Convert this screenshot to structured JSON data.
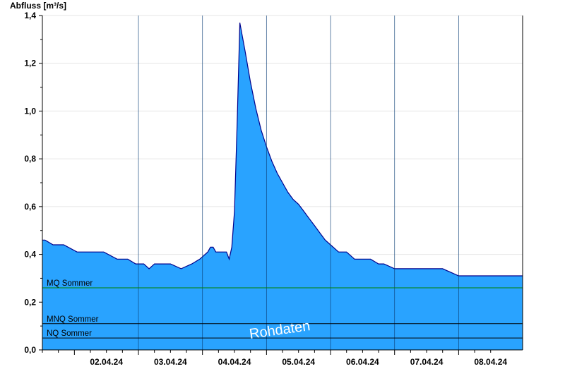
{
  "chart_data": {
    "type": "area",
    "ylabel": "Abfluss [m³/s]",
    "ylim": [
      0,
      1.4
    ],
    "y_ticks": [
      "0,0",
      "0,2",
      "0,4",
      "0,6",
      "0,8",
      "1,0",
      "1,2",
      "1,4"
    ],
    "x_ticks": [
      "02.04.24",
      "03.04.24",
      "04.04.24",
      "05.04.24",
      "06.04.24",
      "07.04.24",
      "08.04.24"
    ],
    "grid": true,
    "fill_color": "#29A3FF",
    "line_color": "#00008B",
    "watermark": "Rohdaten",
    "reference_lines": [
      {
        "label": "MQ Sommer",
        "value": 0.26,
        "color": "#008000"
      },
      {
        "label": "MNQ Sommer",
        "value": 0.11,
        "color": "#000000"
      },
      {
        "label": "NQ Sommer",
        "value": 0.05,
        "color": "#000000"
      }
    ],
    "series": [
      {
        "x": [
          "01.04.24 12:00",
          "01.04.24 13:00",
          "01.04.24 16:00",
          "01.04.24 20:00",
          "02.04.24 01:00",
          "02.04.24 06:00",
          "02.04.24 11:00",
          "02.04.24 16:00",
          "02.04.24 17:00",
          "02.04.24 20:00",
          "02.04.24 23:00",
          "03.04.24 02:00",
          "03.04.24 04:00",
          "03.04.24 06:00",
          "03.04.24 08:00",
          "03.04.24 12:00",
          "03.04.24 16:00",
          "03.04.24 20:00",
          "03.04.24 23:00",
          "04.04.24 02:00",
          "04.04.24 03:00",
          "04.04.24 04:00",
          "04.04.24 05:00",
          "04.04.24 06:00",
          "04.04.24 07:00",
          "04.04.24 08:00",
          "04.04.24 09:00",
          "04.04.24 10:00",
          "04.04.24 11:00",
          "04.04.24 12:00",
          "04.04.24 13:00",
          "04.04.24 14:00",
          "04.04.24 16:00",
          "04.04.24 18:00",
          "04.04.24 20:00",
          "04.04.24 22:00",
          "05.04.24 00:00",
          "05.04.24 02:00",
          "05.04.24 04:00",
          "05.04.24 06:00",
          "05.04.24 08:00",
          "05.04.24 10:00",
          "05.04.24 12:00",
          "05.04.24 14:00",
          "05.04.24 16:00",
          "05.04.24 18:00",
          "05.04.24 20:00",
          "05.04.24 22:00",
          "06.04.24 00:00",
          "06.04.24 03:00",
          "06.04.24 06:00",
          "06.04.24 09:00",
          "06.04.24 12:00",
          "06.04.24 15:00",
          "06.04.24 18:00",
          "06.04.24 20:00",
          "07.04.24 00:00",
          "07.04.24 06:00",
          "07.04.24 12:00",
          "07.04.24 18:00",
          "08.04.24 00:00",
          "08.04.24 06:00",
          "08.04.24 12:00",
          "08.04.24 18:00",
          "08.04.24 23:59"
        ],
        "values": [
          0.46,
          0.46,
          0.44,
          0.44,
          0.41,
          0.41,
          0.41,
          0.38,
          0.38,
          0.38,
          0.36,
          0.36,
          0.34,
          0.36,
          0.36,
          0.36,
          0.34,
          0.36,
          0.38,
          0.41,
          0.43,
          0.43,
          0.41,
          0.41,
          0.41,
          0.41,
          0.41,
          0.38,
          0.43,
          0.58,
          0.95,
          1.37,
          1.25,
          1.12,
          1.01,
          0.92,
          0.85,
          0.79,
          0.74,
          0.7,
          0.66,
          0.63,
          0.61,
          0.58,
          0.55,
          0.52,
          0.49,
          0.46,
          0.44,
          0.41,
          0.41,
          0.38,
          0.38,
          0.38,
          0.36,
          0.36,
          0.34,
          0.34,
          0.34,
          0.34,
          0.31,
          0.31,
          0.31,
          0.31,
          0.31
        ]
      }
    ]
  }
}
